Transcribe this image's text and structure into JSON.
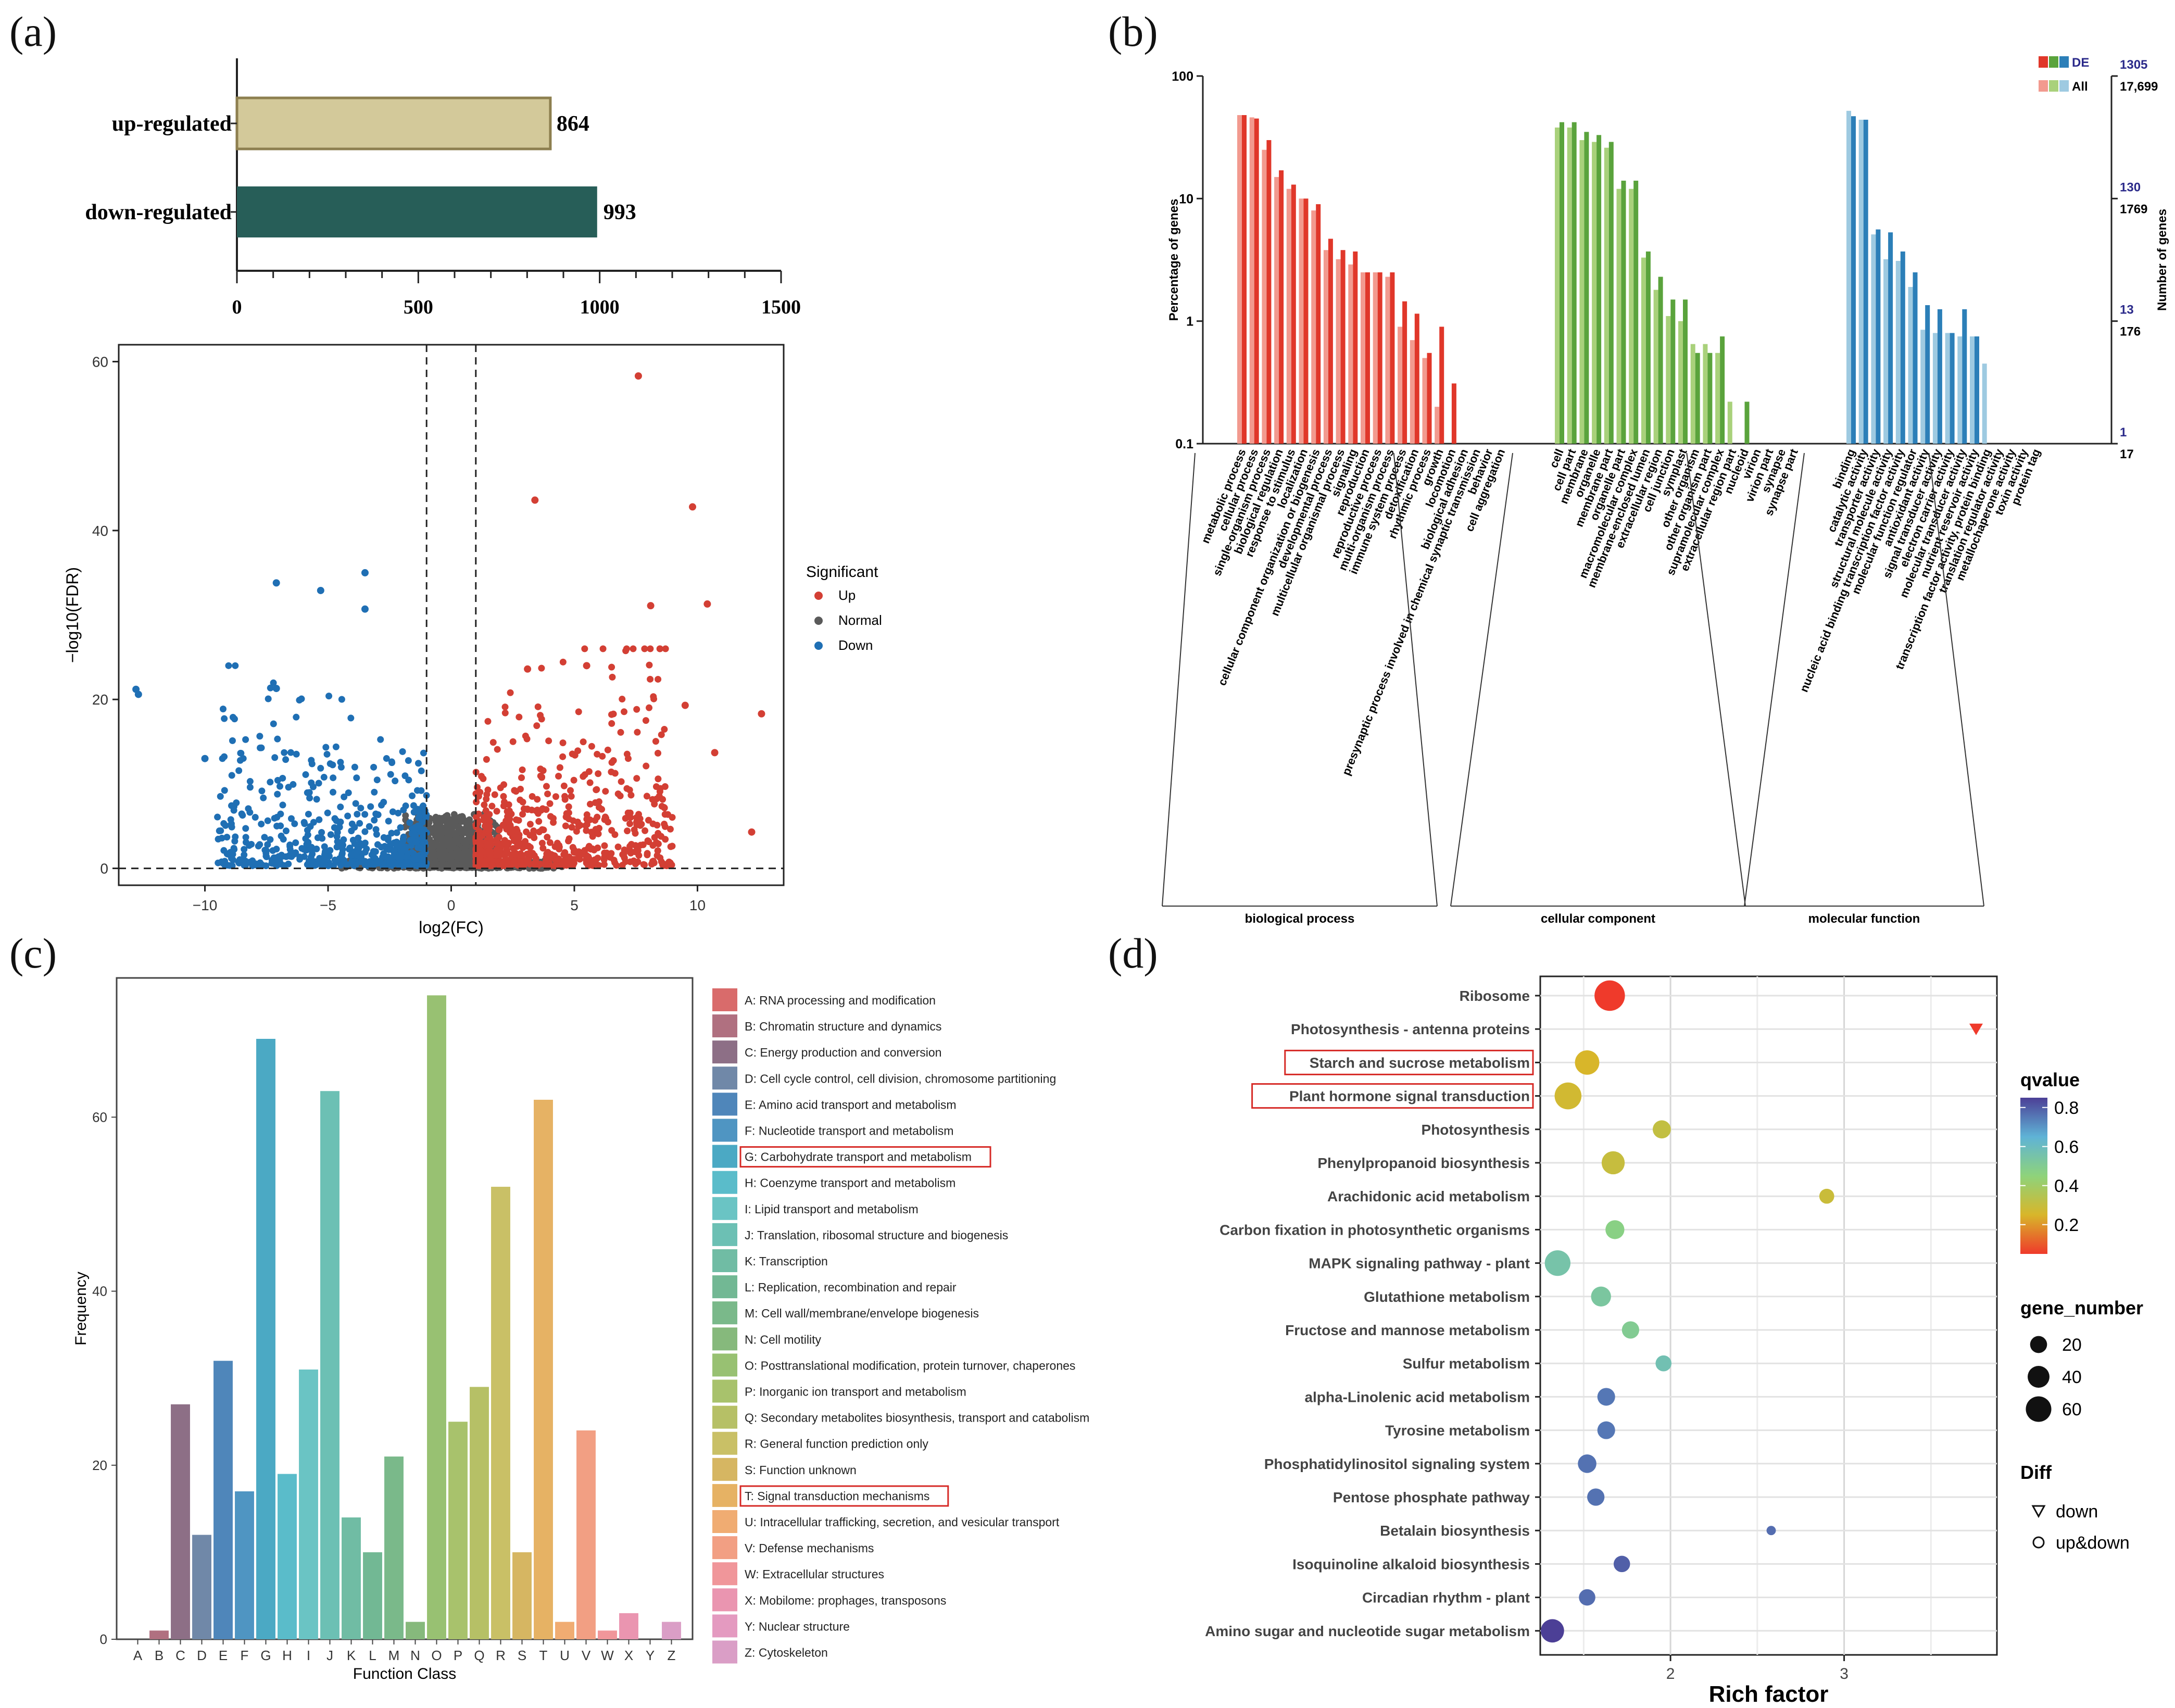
{
  "panel_labels": {
    "a": "(a)",
    "b": "(b)",
    "c": "(c)",
    "d": "(d)"
  },
  "chart_data": [
    {
      "id": "a_bar",
      "type": "bar",
      "orientation": "horizontal",
      "categories": [
        "up-regulated",
        "down-regulated"
      ],
      "values": [
        864,
        993
      ],
      "value_labels": [
        "864",
        "993"
      ],
      "colors": [
        "#d3c99a",
        "#275e58"
      ],
      "xlim": [
        0,
        1500
      ],
      "xticks": [
        "0",
        "500",
        "1000",
        "1500"
      ]
    },
    {
      "id": "a_volcano",
      "type": "scatter",
      "xlabel": "log2(FC)",
      "ylabel": "−log10(FDR)",
      "xlim": [
        -13.5,
        13.5
      ],
      "ylim": [
        -2,
        62
      ],
      "xticks": [
        "−10",
        "−5",
        "0",
        "5",
        "10"
      ],
      "xtick_values": [
        -10,
        -5,
        0,
        5,
        10
      ],
      "yticks": [
        "0",
        "20",
        "40",
        "60"
      ],
      "ytick_values": [
        0,
        20,
        40,
        60
      ],
      "thresholds": {
        "log2fc": [
          -1,
          1
        ],
        "fdr_line_y": 0
      },
      "legend": {
        "title": "Significant",
        "items": [
          "Up",
          "Normal",
          "Down"
        ],
        "colors": [
          "#d33f34",
          "#5a5a5a",
          "#1f6fb4"
        ]
      },
      "highlight_up": [
        [
          7.6,
          58.3
        ],
        [
          3.4,
          43.6
        ],
        [
          9.8,
          42.8
        ],
        [
          12.6,
          18.3
        ],
        [
          10.4,
          31.3
        ],
        [
          8.1,
          31.1
        ],
        [
          5.5,
          24.0
        ],
        [
          3.1,
          23.6
        ],
        [
          12.2,
          4.3
        ],
        [
          10.7,
          13.7
        ],
        [
          9.5,
          19.3
        ]
      ],
      "highlight_down": [
        [
          -12.8,
          21.2
        ],
        [
          -12.7,
          20.6
        ],
        [
          -7.1,
          33.8
        ],
        [
          -3.5,
          35.0
        ],
        [
          -3.5,
          30.7
        ],
        [
          -5.3,
          32.9
        ],
        [
          -7.1,
          21.3
        ],
        [
          -10.0,
          13.0
        ]
      ]
    },
    {
      "id": "b_go",
      "type": "bar",
      "scale": "log",
      "ylabel_left": "Percentage of genes",
      "ylabel_right": "Number of genes",
      "yticks_left": [
        "100",
        "10",
        "1",
        "0.1"
      ],
      "ytick_values": [
        100,
        10,
        1,
        0.1
      ],
      "right_ticks_de": [
        "1305",
        "130",
        "13",
        "1"
      ],
      "right_ticks_all": [
        "17,699",
        "1769",
        "176",
        "17"
      ],
      "legend": [
        "DE",
        "All"
      ],
      "groups": [
        {
          "name": "biological process",
          "color_de": "#e0372a",
          "color_all": "#f29a8f",
          "terms": [
            "metabolic process",
            "cellular process",
            "single-organism process",
            "biological regulation",
            "response to stimulus",
            "localization",
            "cellular component organization or biogenesis",
            "developmental process",
            "multicellular organismal process",
            "signaling",
            "reproduction",
            "reproductive process",
            "multi-organism process",
            "immune system process",
            "detoxification",
            "rhythmic process",
            "growth",
            "locomotion",
            "biological adhesion",
            "presynaptic process involved in chemical synaptic transmission",
            "behavior",
            "cell aggregation"
          ],
          "all": [
            48,
            46,
            25,
            15,
            12,
            10,
            8,
            3.8,
            3.2,
            2.9,
            2.5,
            2.5,
            2.3,
            0.9,
            0.7,
            0.5,
            0.2,
            null,
            null,
            null,
            null,
            null
          ],
          "de": [
            48,
            45,
            30,
            17,
            13,
            10,
            9,
            4.7,
            3.8,
            3.7,
            2.5,
            2.5,
            2.5,
            1.45,
            1.15,
            0.55,
            0.9,
            0.31,
            null,
            null,
            null,
            null
          ]
        },
        {
          "name": "cellular component",
          "color_de": "#5aa33c",
          "color_all": "#a9d17b",
          "terms": [
            "cell",
            "cell part",
            "membrane",
            "organelle",
            "membrane part",
            "organelle part",
            "macromolecular complex",
            "membrane-enclosed lumen",
            "extracellular region",
            "cell junction",
            "symplast",
            "other organism",
            "other organism part",
            "supramolecular complex",
            "extracellular region part",
            "nucleoid",
            "virion",
            "virion part",
            "synapse",
            "synapse part"
          ],
          "all": [
            38,
            38,
            30,
            29,
            26,
            12,
            12,
            3.3,
            1.8,
            1.1,
            1.0,
            0.65,
            0.65,
            0.55,
            0.22,
            null,
            null,
            null,
            null,
            null
          ],
          "de": [
            42,
            42,
            35,
            33,
            29,
            14,
            14,
            3.7,
            2.3,
            1.5,
            1.5,
            0.55,
            0.55,
            0.75,
            null,
            0.22,
            null,
            null,
            null,
            null
          ]
        },
        {
          "name": "molecular function",
          "color_de": "#2c7fb8",
          "color_all": "#9ecae1",
          "terms": [
            "binding",
            "catalytic activity",
            "transporter activity",
            "structural molecule activity",
            "nucleic acid binding transcription factor activity",
            "molecular function regulator",
            "antioxidant activity",
            "signal transducer activity",
            "electron carrier activity",
            "molecular transducer activity",
            "nutrient reservoir activity",
            "transcription factor activity, protein binding",
            "translation regulator activity",
            "metallochaperone activity",
            "toxin activity",
            "protein tag"
          ],
          "all": [
            52,
            44,
            5.1,
            3.2,
            3.1,
            1.9,
            0.85,
            0.8,
            0.8,
            0.75,
            0.75,
            0.45,
            null,
            null,
            null,
            null
          ],
          "de": [
            47,
            44,
            5.6,
            5.3,
            3.7,
            2.5,
            1.35,
            1.25,
            0.8,
            1.25,
            0.75,
            null,
            null,
            null,
            null,
            null
          ]
        }
      ]
    },
    {
      "id": "c_cog",
      "type": "bar",
      "xlabel": "Function Class",
      "ylabel": "Frequency",
      "ylim": [
        0,
        76
      ],
      "yticks": [
        "0",
        "20",
        "40",
        "60"
      ],
      "ytick_values": [
        0,
        20,
        40,
        60
      ],
      "categories": [
        "A",
        "B",
        "C",
        "D",
        "E",
        "F",
        "G",
        "H",
        "I",
        "J",
        "K",
        "L",
        "M",
        "N",
        "O",
        "P",
        "Q",
        "R",
        "S",
        "T",
        "U",
        "V",
        "W",
        "X",
        "Y",
        "Z"
      ],
      "values": [
        0,
        1,
        27,
        12,
        32,
        17,
        69,
        19,
        31,
        63,
        14,
        10,
        21,
        2,
        74,
        25,
        29,
        52,
        10,
        62,
        2,
        24,
        1,
        3,
        0,
        2
      ],
      "colors": [
        "#d96b6b",
        "#b07080",
        "#8d6f86",
        "#7088a8",
        "#4f86ba",
        "#4f95c2",
        "#4ba9c4",
        "#5abcca",
        "#6ac4c4",
        "#6cc0b4",
        "#70bca4",
        "#72b894",
        "#7ab98a",
        "#86b97c",
        "#98c172",
        "#a8c26c",
        "#b6c066",
        "#c9c066",
        "#d6b662",
        "#e6b264",
        "#f0ac72",
        "#f29f83",
        "#f0969a",
        "#ea95b0",
        "#e49ac0",
        "#da9ec6"
      ],
      "legend": [
        "A: RNA processing and modification",
        "B: Chromatin structure and dynamics",
        "C: Energy production and conversion",
        "D: Cell cycle control, cell division, chromosome partitioning",
        "E: Amino acid transport and metabolism",
        "F: Nucleotide transport and metabolism",
        "G: Carbohydrate transport and metabolism",
        "H: Coenzyme transport and metabolism",
        "I: Lipid transport and metabolism",
        "J: Translation, ribosomal structure and biogenesis",
        "K: Transcription",
        "L: Replication, recombination and repair",
        "M: Cell wall/membrane/envelope biogenesis",
        "N: Cell motility",
        "O: Posttranslational modification, protein turnover, chaperones",
        "P: Inorganic ion transport and metabolism",
        "Q: Secondary metabolites biosynthesis, transport and catabolism",
        "R: General function prediction only",
        "S: Function unknown",
        "T: Signal transduction mechanisms",
        "U: Intracellular trafficking, secretion, and vesicular transport",
        "V: Defense mechanisms",
        "W: Extracellular structures",
        "X: Mobilome: prophages, transposons",
        "Y: Nuclear structure",
        "Z: Cytoskeleton"
      ],
      "highlighted": [
        "G",
        "T"
      ]
    },
    {
      "id": "d_kegg",
      "type": "scatter",
      "xlabel": "Rich factor",
      "xlim": [
        1.25,
        3.88
      ],
      "xticks": [
        "2",
        "3"
      ],
      "xtick_values": [
        2,
        3
      ],
      "pathways": [
        "Ribosome",
        "Photosynthesis - antenna proteins",
        "Starch and sucrose metabolism",
        "Plant hormone signal transduction",
        "Photosynthesis",
        "Phenylpropanoid biosynthesis",
        "Arachidonic acid metabolism",
        "Carbon fixation in photosynthetic organisms",
        "MAPK signaling pathway - plant",
        "Glutathione metabolism",
        "Fructose and mannose metabolism",
        "Sulfur metabolism",
        "alpha-Linolenic acid metabolism",
        "Tyrosine metabolism",
        "Phosphatidylinositol signaling system",
        "Pentose phosphate pathway",
        "Betalain biosynthesis",
        "Isoquinoline alkaloid biosynthesis",
        "Circadian rhythm - plant",
        "Amino sugar and nucleotide sugar metabolism"
      ],
      "rich_factor": [
        1.65,
        3.76,
        1.52,
        1.41,
        1.95,
        1.67,
        2.9,
        1.68,
        1.35,
        1.6,
        1.77,
        1.96,
        1.63,
        1.63,
        1.52,
        1.57,
        2.58,
        1.72,
        1.52,
        1.32
      ],
      "gene_number": [
        62,
        10,
        35,
        45,
        15,
        30,
        8,
        17,
        40,
        20,
        13,
        10,
        14,
        14,
        16,
        13,
        1,
        11,
        11,
        31
      ],
      "qvalue": [
        0.05,
        0.05,
        0.2,
        0.22,
        0.26,
        0.25,
        0.24,
        0.42,
        0.5,
        0.48,
        0.45,
        0.52,
        0.73,
        0.73,
        0.74,
        0.74,
        0.75,
        0.78,
        0.75,
        0.85
      ],
      "diff": [
        "up&down",
        "down",
        "up&down",
        "up&down",
        "up&down",
        "up&down",
        "up&down",
        "up&down",
        "up&down",
        "up&down",
        "up&down",
        "up&down",
        "up&down",
        "up&down",
        "up&down",
        "up&down",
        "up&down",
        "up&down",
        "up&down",
        "up&down"
      ],
      "highlighted": [
        "Starch and sucrose metabolism",
        "Plant hormone signal transduction"
      ],
      "legend_q": {
        "title": "qvalue",
        "ticks": [
          "0.8",
          "0.6",
          "0.4",
          "0.2"
        ],
        "tick_values": [
          0.8,
          0.6,
          0.4,
          0.2
        ]
      },
      "legend_size": {
        "title": "gene_number",
        "labels": [
          "20",
          "40",
          "60"
        ],
        "values": [
          20,
          40,
          60
        ]
      },
      "legend_diff": {
        "title": "Diff",
        "items": [
          "down",
          "up&down"
        ]
      }
    }
  ]
}
